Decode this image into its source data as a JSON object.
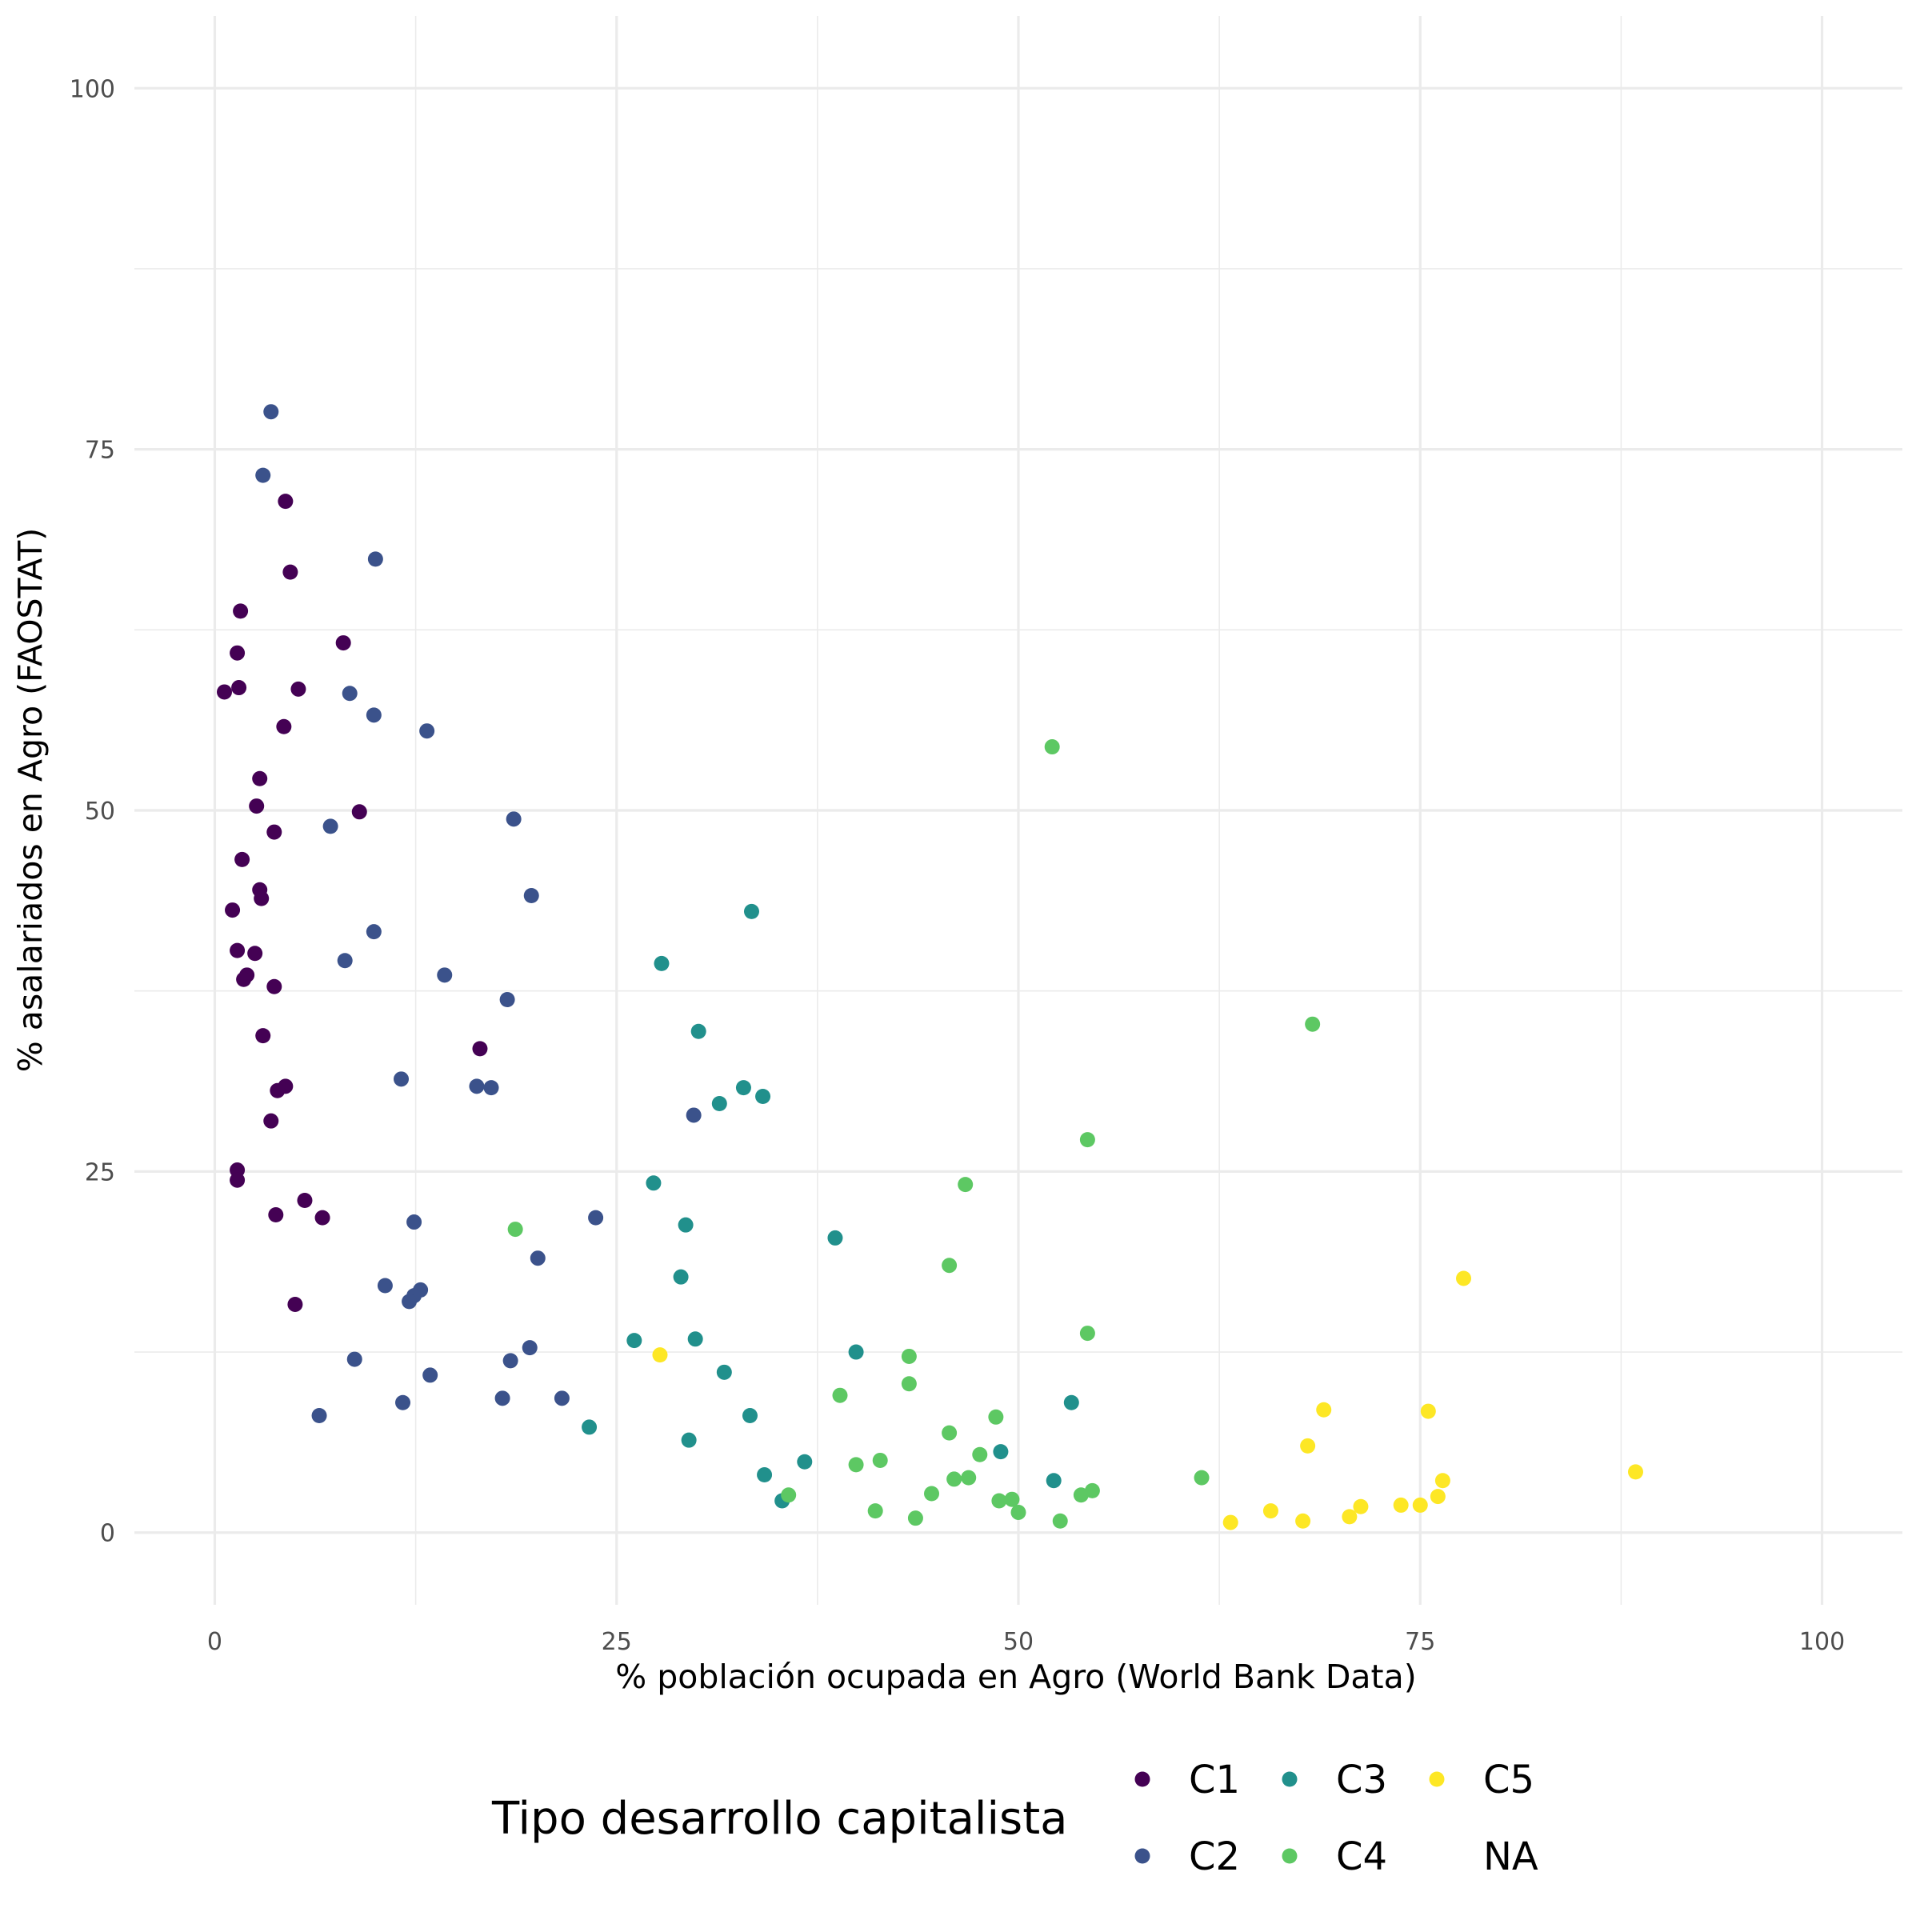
{
  "chart_data": {
    "type": "scatter",
    "title": "",
    "xlabel": "% población ocupada en Agro (World Bank Data)",
    "ylabel": "% asalariados en Agro (FAOSTAT)",
    "xlim": [
      -5,
      105
    ],
    "ylim": [
      -5,
      105
    ],
    "x_ticks": [
      0,
      25,
      50,
      75,
      100
    ],
    "y_ticks": [
      0,
      25,
      50,
      75,
      100
    ],
    "grid": true,
    "legend_position": "bottom",
    "legend_title": "Tipo desarrollo capitalista",
    "colors": {
      "C1": "#440154",
      "C2": "#3b528b",
      "C3": "#21908c",
      "C4": "#5dc863",
      "C5": "#fde725",
      "NA": "#7f7f7f"
    },
    "series": [
      {
        "name": "C1",
        "points": [
          [
            0.6,
            58.2
          ],
          [
            1.4,
            60.9
          ],
          [
            1.5,
            58.5
          ],
          [
            1.6,
            63.8
          ],
          [
            4.4,
            71.4
          ],
          [
            4.7,
            66.5
          ],
          [
            5.2,
            58.4
          ],
          [
            4.3,
            55.8
          ],
          [
            8.0,
            61.6
          ],
          [
            2.8,
            52.2
          ],
          [
            2.6,
            50.3
          ],
          [
            3.7,
            48.5
          ],
          [
            9.0,
            49.9
          ],
          [
            1.7,
            46.6
          ],
          [
            2.8,
            44.5
          ],
          [
            2.9,
            43.9
          ],
          [
            1.1,
            43.1
          ],
          [
            1.4,
            40.3
          ],
          [
            2.5,
            40.1
          ],
          [
            2.0,
            38.6
          ],
          [
            1.8,
            38.3
          ],
          [
            3.7,
            37.8
          ],
          [
            3.0,
            34.4
          ],
          [
            16.5,
            33.5
          ],
          [
            4.4,
            30.9
          ],
          [
            3.9,
            30.6
          ],
          [
            3.5,
            28.5
          ],
          [
            1.4,
            25.1
          ],
          [
            1.4,
            24.4
          ],
          [
            5.6,
            23.0
          ],
          [
            3.8,
            22.0
          ],
          [
            6.7,
            21.8
          ],
          [
            5.0,
            15.8
          ]
        ]
      },
      {
        "name": "C2",
        "points": [
          [
            3.5,
            77.6
          ],
          [
            3.0,
            73.2
          ],
          [
            10.0,
            67.4
          ],
          [
            8.4,
            58.1
          ],
          [
            9.9,
            56.6
          ],
          [
            13.2,
            55.5
          ],
          [
            18.6,
            49.4
          ],
          [
            7.2,
            48.9
          ],
          [
            19.7,
            44.1
          ],
          [
            9.9,
            41.6
          ],
          [
            8.1,
            39.6
          ],
          [
            14.3,
            38.6
          ],
          [
            18.2,
            36.9
          ],
          [
            11.6,
            31.4
          ],
          [
            16.3,
            30.9
          ],
          [
            17.2,
            30.8
          ],
          [
            29.8,
            28.9
          ],
          [
            23.7,
            21.8
          ],
          [
            12.4,
            21.5
          ],
          [
            20.1,
            19.0
          ],
          [
            10.6,
            17.1
          ],
          [
            12.8,
            16.8
          ],
          [
            12.4,
            16.4
          ],
          [
            12.1,
            16.0
          ],
          [
            19.6,
            12.8
          ],
          [
            8.7,
            12.0
          ],
          [
            18.4,
            11.9
          ],
          [
            13.4,
            10.9
          ],
          [
            17.9,
            9.3
          ],
          [
            21.6,
            9.3
          ],
          [
            11.7,
            9.0
          ],
          [
            6.5,
            8.1
          ]
        ]
      },
      {
        "name": "C3",
        "points": [
          [
            33.4,
            43.0
          ],
          [
            27.8,
            39.4
          ],
          [
            30.1,
            34.7
          ],
          [
            32.9,
            30.8
          ],
          [
            34.1,
            30.2
          ],
          [
            31.4,
            29.7
          ],
          [
            27.3,
            24.2
          ],
          [
            29.3,
            21.3
          ],
          [
            38.6,
            20.4
          ],
          [
            29.0,
            17.7
          ],
          [
            26.1,
            13.3
          ],
          [
            29.9,
            13.4
          ],
          [
            39.9,
            12.5
          ],
          [
            31.7,
            11.1
          ],
          [
            53.3,
            9.0
          ],
          [
            33.3,
            8.1
          ],
          [
            23.3,
            7.3
          ],
          [
            29.5,
            6.4
          ],
          [
            48.9,
            5.6
          ],
          [
            36.7,
            4.9
          ],
          [
            34.2,
            4.0
          ],
          [
            52.2,
            3.6
          ],
          [
            35.3,
            2.2
          ]
        ]
      },
      {
        "name": "C4",
        "points": [
          [
            52.1,
            54.4
          ],
          [
            68.3,
            35.2
          ],
          [
            54.3,
            27.2
          ],
          [
            46.7,
            24.1
          ],
          [
            18.7,
            21.0
          ],
          [
            45.7,
            18.5
          ],
          [
            54.3,
            13.8
          ],
          [
            43.2,
            12.2
          ],
          [
            43.2,
            10.3
          ],
          [
            38.9,
            9.5
          ],
          [
            48.6,
            8.0
          ],
          [
            45.7,
            6.9
          ],
          [
            47.6,
            5.4
          ],
          [
            41.4,
            5.0
          ],
          [
            39.9,
            4.7
          ],
          [
            61.4,
            3.8
          ],
          [
            46.9,
            3.8
          ],
          [
            46.0,
            3.7
          ],
          [
            54.6,
            2.9
          ],
          [
            53.9,
            2.6
          ],
          [
            44.6,
            2.7
          ],
          [
            35.7,
            2.6
          ],
          [
            49.6,
            2.3
          ],
          [
            48.8,
            2.2
          ],
          [
            41.1,
            1.5
          ],
          [
            50.0,
            1.4
          ],
          [
            43.6,
            1.0
          ],
          [
            52.6,
            0.8
          ]
        ]
      },
      {
        "name": "C5",
        "points": [
          [
            27.7,
            12.3
          ],
          [
            77.7,
            17.6
          ],
          [
            69.0,
            8.5
          ],
          [
            75.5,
            8.4
          ],
          [
            68.0,
            6.0
          ],
          [
            88.4,
            4.2
          ],
          [
            76.4,
            3.6
          ],
          [
            76.1,
            2.5
          ],
          [
            73.8,
            1.9
          ],
          [
            75.0,
            1.9
          ],
          [
            71.3,
            1.8
          ],
          [
            70.6,
            1.1
          ],
          [
            65.7,
            1.5
          ],
          [
            67.7,
            0.8
          ],
          [
            63.2,
            0.7
          ]
        ]
      }
    ]
  }
}
